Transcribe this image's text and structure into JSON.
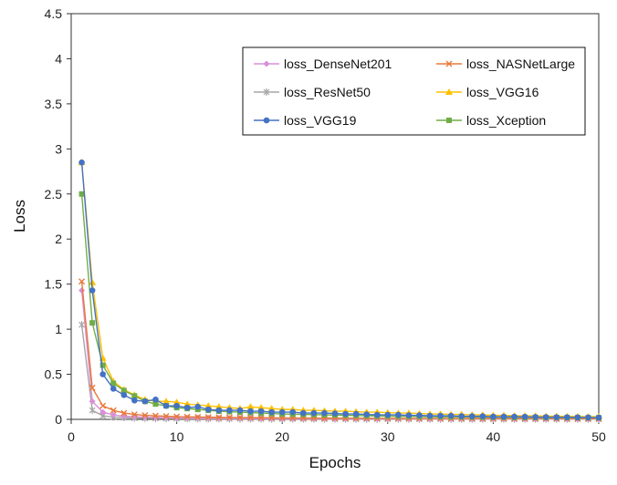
{
  "chart_data": {
    "type": "line",
    "title": "",
    "xlabel": "Epochs",
    "ylabel": "Loss",
    "xlim": [
      0,
      50
    ],
    "ylim": [
      0,
      4.5
    ],
    "xticks": [
      "0",
      "10",
      "20",
      "30",
      "40",
      "50"
    ],
    "yticks": [
      "0",
      "0.5",
      "1",
      "1.5",
      "2",
      "2.5",
      "3",
      "3.5",
      "4",
      "4.5"
    ],
    "grid": "none",
    "legend_position": "top-right",
    "x": [
      1,
      2,
      3,
      4,
      5,
      6,
      7,
      8,
      9,
      10,
      11,
      12,
      13,
      14,
      15,
      16,
      17,
      18,
      19,
      20,
      21,
      22,
      23,
      24,
      25,
      26,
      27,
      28,
      29,
      30,
      31,
      32,
      33,
      34,
      35,
      36,
      37,
      38,
      39,
      40,
      41,
      42,
      43,
      44,
      45,
      46,
      47,
      48,
      49,
      50
    ],
    "series": [
      {
        "name": "loss_DenseNet201",
        "color": "#d98fd9",
        "marker": "diamond",
        "values": [
          1.43,
          0.2,
          0.08,
          0.05,
          0.035,
          0.03,
          0.025,
          0.022,
          0.02,
          0.018,
          0.016,
          0.015,
          0.014,
          0.013,
          0.012,
          0.011,
          0.011,
          0.01,
          0.01,
          0.009,
          0.009,
          0.009,
          0.008,
          0.008,
          0.008,
          0.008,
          0.007,
          0.007,
          0.007,
          0.007,
          0.007,
          0.006,
          0.006,
          0.006,
          0.006,
          0.006,
          0.006,
          0.005,
          0.005,
          0.005,
          0.005,
          0.005,
          0.005,
          0.005,
          0.005,
          0.004,
          0.004,
          0.004,
          0.004,
          0.004
        ]
      },
      {
        "name": "loss_NASNetLarge",
        "color": "#e8793a",
        "marker": "x",
        "values": [
          1.53,
          0.35,
          0.15,
          0.1,
          0.07,
          0.055,
          0.045,
          0.04,
          0.035,
          0.03,
          0.028,
          0.026,
          0.024,
          0.022,
          0.021,
          0.02,
          0.019,
          0.018,
          0.017,
          0.016,
          0.016,
          0.015,
          0.015,
          0.014,
          0.014,
          0.013,
          0.013,
          0.013,
          0.012,
          0.012,
          0.012,
          0.011,
          0.011,
          0.011,
          0.011,
          0.01,
          0.01,
          0.01,
          0.01,
          0.01,
          0.009,
          0.009,
          0.009,
          0.009,
          0.009,
          0.009,
          0.008,
          0.008,
          0.008,
          0.008
        ]
      },
      {
        "name": "loss_ResNet50",
        "color": "#a6a6a6",
        "marker": "star",
        "values": [
          1.05,
          0.1,
          0.04,
          0.025,
          0.02,
          0.015,
          0.012,
          0.01,
          0.009,
          0.008,
          0.007,
          0.007,
          0.006,
          0.006,
          0.005,
          0.005,
          0.005,
          0.005,
          0.004,
          0.004,
          0.004,
          0.004,
          0.004,
          0.003,
          0.003,
          0.003,
          0.003,
          0.003,
          0.003,
          0.003,
          0.003,
          0.003,
          0.002,
          0.002,
          0.002,
          0.002,
          0.002,
          0.002,
          0.002,
          0.002,
          0.002,
          0.002,
          0.002,
          0.002,
          0.002,
          0.002,
          0.002,
          0.002,
          0.002,
          0.002
        ]
      },
      {
        "name": "loss_VGG16",
        "color": "#ffc000",
        "marker": "triangle",
        "values": [
          2.85,
          1.52,
          0.68,
          0.42,
          0.33,
          0.27,
          0.22,
          0.2,
          0.2,
          0.19,
          0.17,
          0.16,
          0.15,
          0.14,
          0.13,
          0.12,
          0.14,
          0.13,
          0.12,
          0.11,
          0.11,
          0.1,
          0.1,
          0.095,
          0.09,
          0.09,
          0.085,
          0.08,
          0.08,
          0.075,
          0.07,
          0.07,
          0.065,
          0.06,
          0.06,
          0.055,
          0.055,
          0.05,
          0.05,
          0.045,
          0.045,
          0.04,
          0.04,
          0.038,
          0.036,
          0.035,
          0.033,
          0.032,
          0.03,
          0.03
        ]
      },
      {
        "name": "loss_VGG19",
        "color": "#4472c4",
        "marker": "circle",
        "values": [
          2.85,
          1.43,
          0.5,
          0.34,
          0.27,
          0.21,
          0.2,
          0.22,
          0.15,
          0.15,
          0.13,
          0.14,
          0.11,
          0.1,
          0.1,
          0.1,
          0.09,
          0.09,
          0.08,
          0.08,
          0.08,
          0.07,
          0.07,
          0.07,
          0.065,
          0.06,
          0.06,
          0.055,
          0.05,
          0.05,
          0.05,
          0.045,
          0.045,
          0.04,
          0.04,
          0.04,
          0.035,
          0.035,
          0.035,
          0.03,
          0.03,
          0.03,
          0.028,
          0.026,
          0.025,
          0.024,
          0.023,
          0.022,
          0.021,
          0.02
        ]
      },
      {
        "name": "loss_Xception",
        "color": "#70ad47",
        "marker": "square",
        "values": [
          2.5,
          1.07,
          0.6,
          0.4,
          0.32,
          0.26,
          0.2,
          0.17,
          0.15,
          0.13,
          0.12,
          0.11,
          0.1,
          0.09,
          0.085,
          0.08,
          0.075,
          0.07,
          0.065,
          0.06,
          0.058,
          0.055,
          0.052,
          0.05,
          0.048,
          0.045,
          0.043,
          0.04,
          0.038,
          0.036,
          0.034,
          0.033,
          0.031,
          0.03,
          0.029,
          0.028,
          0.027,
          0.026,
          0.025,
          0.024,
          0.023,
          0.022,
          0.022,
          0.021,
          0.02,
          0.02,
          0.019,
          0.019,
          0.018,
          0.018
        ]
      }
    ]
  }
}
